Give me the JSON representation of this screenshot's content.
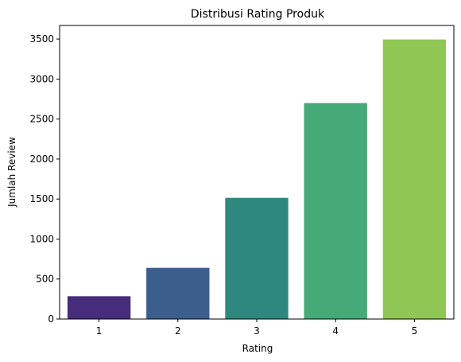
{
  "chart_data": {
    "type": "bar",
    "title": "Distribusi Rating Produk",
    "xlabel": "Rating",
    "ylabel": "Jumlah Review",
    "categories": [
      "1",
      "2",
      "3",
      "4",
      "5"
    ],
    "values": [
      285,
      640,
      1515,
      2700,
      3495
    ],
    "colors": [
      "#472d7b",
      "#3b5e8c",
      "#2e8880",
      "#45aa78",
      "#8fc654"
    ],
    "ylim": [
      0,
      3670
    ],
    "yticks": [
      0,
      500,
      1000,
      1500,
      2000,
      2500,
      3000,
      3500
    ],
    "ytick_labels": [
      "0",
      "500",
      "1000",
      "1500",
      "2000",
      "2500",
      "3000",
      "3500"
    ],
    "grid": false,
    "legend": "none"
  }
}
